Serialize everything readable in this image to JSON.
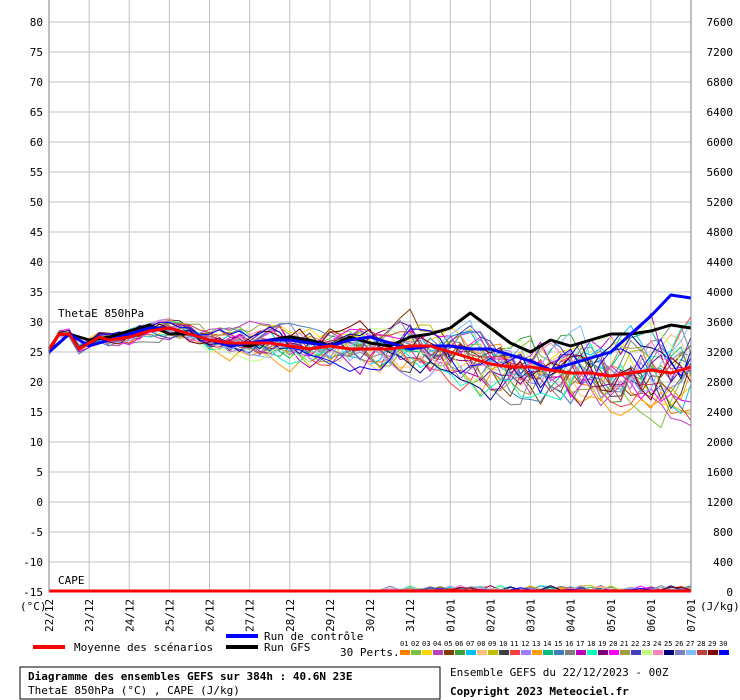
{
  "chart_data": {
    "type": "line",
    "ylabel_left": "(°C)",
    "ylabel_right": "(J/kg)",
    "left_axis": {
      "ticks": [
        80,
        75,
        70,
        65,
        60,
        55,
        50,
        45,
        40,
        35,
        30,
        25,
        20,
        15,
        10,
        5,
        0,
        -5,
        -10,
        -15
      ],
      "range": [
        -15,
        80
      ]
    },
    "right_axis": {
      "ticks": [
        7600,
        7200,
        6800,
        6400,
        6000,
        5600,
        5200,
        4800,
        4400,
        4000,
        3600,
        3200,
        2800,
        2400,
        2000,
        1600,
        1200,
        800,
        400,
        0
      ]
    },
    "x_labels": [
      "22/12",
      "23/12",
      "24/12",
      "25/12",
      "26/12",
      "27/12",
      "28/12",
      "29/12",
      "30/12",
      "31/12",
      "01/01",
      "02/01",
      "03/01",
      "04/01",
      "05/01",
      "06/01",
      "07/01"
    ],
    "x_range_hours": [
      0,
      384
    ],
    "annotations": {
      "thetae": "ThetaE 850hPa",
      "cape": "CAPE"
    },
    "legend": {
      "mean": "Moyenne des scénarios",
      "control": "Run de contrôle",
      "gfs": "Run GFS",
      "perts": "30 Perts.",
      "pert_numbers": [
        "01",
        "02",
        "03",
        "04",
        "05",
        "06",
        "07",
        "08",
        "09",
        "10",
        "11",
        "12",
        "13",
        "14",
        "15",
        "16",
        "17",
        "18",
        "19",
        "20",
        "21",
        "22",
        "23",
        "24",
        "25",
        "26",
        "27",
        "28",
        "29",
        "30"
      ],
      "pert_colors": [
        "#ff7f00",
        "#7fbf3f",
        "#ffd700",
        "#bf3fbf",
        "#7f3f00",
        "#3f9f3f",
        "#00bfff",
        "#ffbf7f",
        "#bfbf00",
        "#3f3f3f",
        "#ff3f3f",
        "#9f7fff",
        "#ff9f00",
        "#00bf7f",
        "#3f7fbf",
        "#7f7f7f",
        "#bf00bf",
        "#00ffbf",
        "#7f007f",
        "#ff00ff",
        "#9f9f3f",
        "#3f3fbf",
        "#bfff7f",
        "#ff7fbf",
        "#00007f",
        "#7f7fbf",
        "#7fbfff",
        "#bf3f3f",
        "#7f0000",
        "#0000ff"
      ]
    },
    "series": [
      {
        "name": "Moyenne des scénarios",
        "color": "#ff0000",
        "x": [
          0,
          6,
          12,
          18,
          24,
          30,
          36,
          48,
          60,
          72,
          84,
          96,
          108,
          120,
          132,
          144,
          156,
          168,
          180,
          192,
          204,
          216,
          228,
          240,
          252,
          264,
          276,
          288,
          300,
          312,
          324,
          336,
          348,
          360,
          372,
          384
        ],
        "y": [
          25.5,
          28,
          28,
          25.5,
          26.5,
          27.5,
          27,
          27.5,
          28.5,
          29,
          28,
          27,
          26.5,
          26.5,
          26.5,
          26,
          25.5,
          26,
          25.5,
          25.5,
          25.5,
          26,
          26,
          25,
          24,
          23,
          22.5,
          22.5,
          22,
          21.5,
          21.5,
          21,
          21.5,
          22,
          21.5,
          22.5
        ]
      },
      {
        "name": "Run de contrôle",
        "color": "#0000ff",
        "x": [
          0,
          12,
          24,
          36,
          48,
          60,
          72,
          84,
          96,
          108,
          120,
          132,
          144,
          156,
          168,
          180,
          192,
          204,
          216,
          228,
          240,
          252,
          264,
          276,
          288,
          300,
          312,
          324,
          336,
          348,
          360,
          372,
          384
        ],
        "y": [
          25,
          28,
          26,
          27,
          28,
          29,
          29,
          28,
          27,
          26,
          26.5,
          27,
          27,
          26.5,
          26,
          27,
          27.5,
          26.5,
          25.5,
          26,
          26,
          25.5,
          25.5,
          24.5,
          23.5,
          22,
          23,
          24,
          25,
          28,
          31,
          34.5,
          34
        ]
      },
      {
        "name": "Run GFS",
        "color": "#000000",
        "x": [
          0,
          12,
          24,
          36,
          48,
          60,
          72,
          84,
          96,
          108,
          120,
          132,
          144,
          156,
          168,
          180,
          192,
          204,
          216,
          228,
          240,
          252,
          264,
          276,
          288,
          300,
          312,
          324,
          336,
          348,
          360,
          372,
          384
        ],
        "y": [
          25,
          28,
          27,
          27.5,
          28.5,
          29.5,
          28,
          28,
          27,
          26.5,
          26,
          27,
          27.5,
          27,
          26,
          27.5,
          26.5,
          26,
          27.5,
          28,
          29,
          31.5,
          29,
          26.5,
          25,
          27,
          26,
          27,
          28,
          28,
          28.5,
          29.5,
          29
        ]
      },
      {
        "name": "CAPE",
        "color": "#ff0000",
        "x": [
          0,
          384
        ],
        "y": [
          0,
          0
        ]
      }
    ]
  },
  "footer": {
    "title": "Diagramme des ensembles GEFS sur 384h : 40.6N 23E",
    "subtitle": "ThetaE 850hPa (°C) , CAPE (J/kg)",
    "run": "Ensemble GEFS du 22/12/2023 - 00Z",
    "copyright": "Copyright 2023 Meteociel.fr"
  }
}
